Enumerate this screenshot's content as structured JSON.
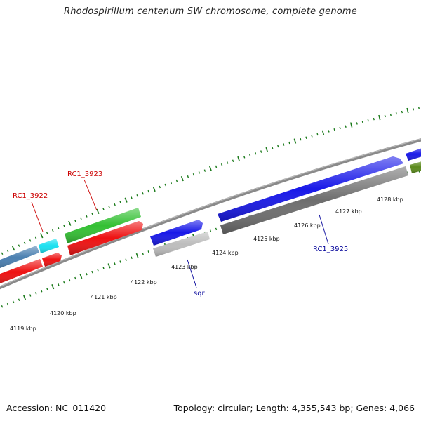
{
  "title": "Rhodospirillum centenum SW chromosome, complete genome",
  "footer": {
    "accession": "Accession: NC_011420",
    "summary": "Topology: circular; Length: 4,355,543 bp; Genes: 4,066"
  },
  "scale_labels": [
    "4119 kbp",
    "4120 kbp",
    "4121 kbp",
    "4122 kbp",
    "4123 kbp",
    "4124 kbp",
    "4125 kbp",
    "4126 kbp",
    "4127 kbp",
    "4128 kbp"
  ],
  "gene_labels": {
    "rc1_3922": "RC1_3922",
    "rc1_3923": "RC1_3923",
    "sqr": "sqr",
    "rc1_3925": "RC1_3925"
  },
  "colors": {
    "forward_label": "#cc0000",
    "reverse_label": "#000099",
    "tick": "#1a7a1a",
    "backbone": "#8a8a8a",
    "steelblue": "#4a7fb0",
    "cyan": "#18e0f0",
    "green": "#33c033",
    "red": "#ee1111",
    "blue": "#1818e8",
    "lightgray": "#bdbdbd",
    "darkgray": "#6e6e6e",
    "olive": "#5a8a1a"
  }
}
